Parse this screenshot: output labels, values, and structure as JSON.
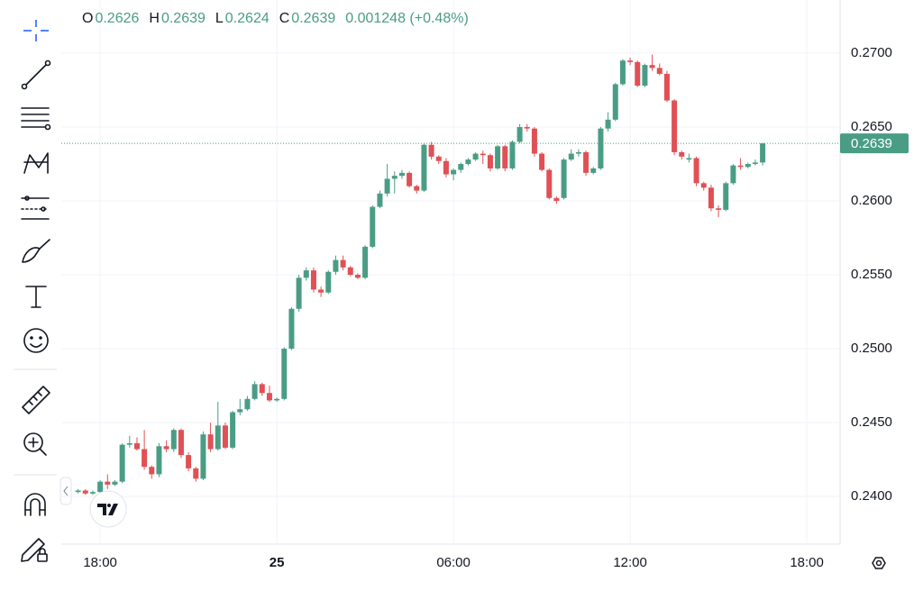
{
  "header": {
    "open_label": "O",
    "open": "0.2626",
    "high_label": "H",
    "high": "0.2639",
    "low_label": "L",
    "low": "0.2624",
    "close_label": "C",
    "close": "0.2639",
    "change": "0.001248 (+0.48%)"
  },
  "chart_data": {
    "type": "candlestick",
    "up_color": "#4a9d85",
    "down_color": "#e05054",
    "grid": true,
    "x": [
      -6.75,
      -6.5,
      -6.25,
      -6,
      -5.75,
      -5.5,
      -5.25,
      -5,
      -4.75,
      -4.5,
      -4.25,
      -4,
      -3.75,
      -3.5,
      -3.25,
      -3,
      -2.75,
      -2.5,
      -2.25,
      -2,
      -1.75,
      -1.5,
      -1.25,
      -1,
      -0.75,
      -0.5,
      -0.25,
      0,
      0.25,
      0.5,
      0.75,
      1,
      1.25,
      1.5,
      1.75,
      2,
      2.25,
      2.5,
      2.75,
      3,
      3.25,
      3.5,
      3.75,
      4,
      4.25,
      4.5,
      4.75,
      5,
      5.25,
      5.5,
      5.75,
      6,
      6.25,
      6.5,
      6.75,
      7,
      7.25,
      7.5,
      7.75,
      8,
      8.25,
      8.5,
      8.75,
      9,
      9.25,
      9.5,
      9.75,
      10,
      10.25,
      10.5,
      10.75,
      11,
      11.25,
      11.5,
      11.75,
      12,
      12.25,
      12.5,
      12.75,
      13,
      13.25,
      13.5,
      13.75,
      14,
      14.25,
      14.5,
      14.75,
      15,
      15.25,
      15.5,
      15.75,
      16,
      16.25,
      16.5
    ],
    "open": [
      0.2403,
      0.2404,
      0.2402,
      0.2403,
      0.241,
      0.2408,
      0.241,
      0.2435,
      0.2436,
      0.2432,
      0.242,
      0.2415,
      0.2434,
      0.2432,
      0.2445,
      0.2428,
      0.2419,
      0.2412,
      0.2442,
      0.2432,
      0.2448,
      0.2433,
      0.2457,
      0.2459,
      0.2466,
      0.2476,
      0.247,
      0.2465,
      0.2466,
      0.25,
      0.2527,
      0.2548,
      0.2553,
      0.254,
      0.2538,
      0.2552,
      0.256,
      0.2555,
      0.255,
      0.2548,
      0.2569,
      0.2596,
      0.2605,
      0.2615,
      0.2617,
      0.2619,
      0.261,
      0.2607,
      0.2638,
      0.263,
      0.2627,
      0.2618,
      0.2621,
      0.2625,
      0.2628,
      0.2632,
      0.2631,
      0.2622,
      0.2637,
      0.2622,
      0.264,
      0.265,
      0.2649,
      0.2632,
      0.2621,
      0.2602,
      0.2602,
      0.2628,
      0.2632,
      0.2633,
      0.2619,
      0.2622,
      0.2649,
      0.2655,
      0.2679,
      0.2695,
      0.2694,
      0.2678,
      0.2692,
      0.269,
      0.2686,
      0.2668,
      0.2633,
      0.2628,
      0.2629,
      0.2612,
      0.2609,
      0.2595,
      0.2594,
      0.2612,
      0.2624,
      0.2623,
      0.2625,
      0.2626
    ],
    "high": [
      0.2405,
      0.2405,
      0.2404,
      0.2411,
      0.2415,
      0.2411,
      0.2436,
      0.2441,
      0.244,
      0.2445,
      0.2421,
      0.2436,
      0.2438,
      0.2446,
      0.2446,
      0.243,
      0.242,
      0.2444,
      0.245,
      0.2464,
      0.245,
      0.2458,
      0.2466,
      0.2468,
      0.2478,
      0.2477,
      0.2475,
      0.2467,
      0.2501,
      0.2528,
      0.255,
      0.2555,
      0.2555,
      0.2542,
      0.2553,
      0.2563,
      0.2563,
      0.2556,
      0.2551,
      0.257,
      0.2597,
      0.2607,
      0.2625,
      0.262,
      0.2621,
      0.262,
      0.2611,
      0.2639,
      0.264,
      0.2631,
      0.2629,
      0.2622,
      0.2626,
      0.2629,
      0.2633,
      0.2634,
      0.2632,
      0.2638,
      0.2638,
      0.2641,
      0.2652,
      0.2652,
      0.265,
      0.2633,
      0.2622,
      0.2603,
      0.2629,
      0.2635,
      0.2635,
      0.2634,
      0.2623,
      0.265,
      0.266,
      0.268,
      0.2696,
      0.2697,
      0.2695,
      0.2693,
      0.2699,
      0.2693,
      0.2688,
      0.2669,
      0.2634,
      0.2632,
      0.263,
      0.2613,
      0.2611,
      0.2597,
      0.2613,
      0.2625,
      0.2629,
      0.2626,
      0.2628,
      0.2639
    ],
    "low": [
      0.2402,
      0.2401,
      0.2401,
      0.2402,
      0.2405,
      0.2407,
      0.2409,
      0.2433,
      0.2431,
      0.2418,
      0.2412,
      0.2413,
      0.243,
      0.243,
      0.2426,
      0.2417,
      0.241,
      0.2411,
      0.243,
      0.2431,
      0.2432,
      0.2432,
      0.2455,
      0.2458,
      0.2465,
      0.2468,
      0.2464,
      0.2464,
      0.2465,
      0.2499,
      0.2525,
      0.2546,
      0.2538,
      0.2535,
      0.2537,
      0.255,
      0.2553,
      0.2549,
      0.2547,
      0.2547,
      0.2568,
      0.2595,
      0.2603,
      0.2605,
      0.2615,
      0.2609,
      0.2605,
      0.2606,
      0.2628,
      0.2625,
      0.2616,
      0.2614,
      0.2619,
      0.2624,
      0.2627,
      0.2625,
      0.262,
      0.2621,
      0.262,
      0.2621,
      0.2639,
      0.2647,
      0.263,
      0.262,
      0.2601,
      0.2598,
      0.2601,
      0.2627,
      0.263,
      0.2617,
      0.2618,
      0.2621,
      0.2647,
      0.2654,
      0.2678,
      0.2692,
      0.2677,
      0.2677,
      0.2688,
      0.2685,
      0.2667,
      0.2631,
      0.2628,
      0.2626,
      0.261,
      0.2607,
      0.2593,
      0.2589,
      0.2593,
      0.2611,
      0.2621,
      0.2622,
      0.2624,
      0.2624
    ],
    "close": [
      0.2404,
      0.2402,
      0.2403,
      0.241,
      0.2408,
      0.241,
      0.2435,
      0.2436,
      0.2432,
      0.242,
      0.2415,
      0.2434,
      0.2432,
      0.2445,
      0.2428,
      0.2419,
      0.2412,
      0.2442,
      0.2432,
      0.2448,
      0.2433,
      0.2457,
      0.2459,
      0.2466,
      0.2476,
      0.247,
      0.2465,
      0.2466,
      0.25,
      0.2527,
      0.2548,
      0.2553,
      0.254,
      0.2538,
      0.2552,
      0.256,
      0.2555,
      0.255,
      0.2548,
      0.2569,
      0.2596,
      0.2605,
      0.2615,
      0.2617,
      0.2619,
      0.261,
      0.2607,
      0.2638,
      0.263,
      0.2627,
      0.2618,
      0.2621,
      0.2625,
      0.2628,
      0.2632,
      0.2631,
      0.2622,
      0.2637,
      0.2622,
      0.264,
      0.265,
      0.2649,
      0.2632,
      0.2621,
      0.2602,
      0.26,
      0.2628,
      0.2632,
      0.2633,
      0.2619,
      0.2622,
      0.2649,
      0.2655,
      0.2679,
      0.2695,
      0.2694,
      0.2678,
      0.2692,
      0.269,
      0.2686,
      0.2668,
      0.2633,
      0.263,
      0.2629,
      0.2612,
      0.2609,
      0.2595,
      0.2594,
      0.2612,
      0.2624,
      0.2623,
      0.2625,
      0.2626,
      0.2639
    ],
    "xlim": [
      -7.32,
      19.13
    ],
    "xticks": [
      {
        "value": -6,
        "label": "18:00"
      },
      {
        "value": 0,
        "label": "25"
      },
      {
        "value": 6,
        "label": "06:00"
      },
      {
        "value": 12,
        "label": "12:00"
      },
      {
        "value": 18,
        "label": "18:00"
      }
    ],
    "ylim": [
      0.23677,
      0.2736
    ],
    "yticks": [
      {
        "value": 0.24,
        "label": "0.2400"
      },
      {
        "value": 0.245,
        "label": "0.2450"
      },
      {
        "value": 0.25,
        "label": "0.2500"
      },
      {
        "value": 0.255,
        "label": "0.2550"
      },
      {
        "value": 0.26,
        "label": "0.2600"
      },
      {
        "value": 0.265,
        "label": "0.2650"
      },
      {
        "value": 0.27,
        "label": "0.2700"
      }
    ],
    "price_line": {
      "value": 0.2639,
      "label": "0.2639"
    }
  }
}
